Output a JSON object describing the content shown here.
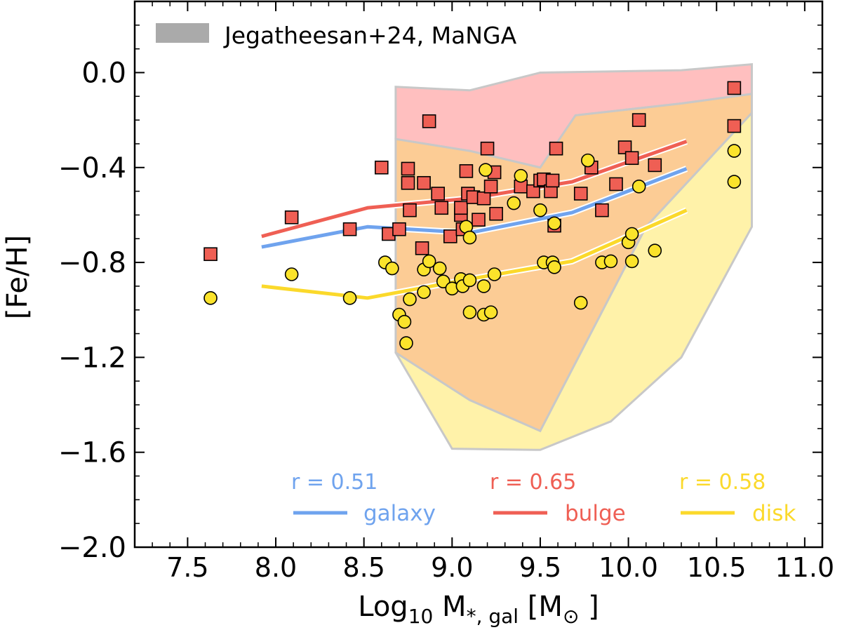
{
  "chart_data": {
    "type": "scatter",
    "xlabel": "Log10 M*,gal [M⊙]",
    "ylabel": "[Fe/H]",
    "xlim": [
      7.2,
      11.1
    ],
    "ylim": [
      -2.0,
      0.3
    ],
    "x_ticks": [
      "7.5",
      "8.0",
      "8.5",
      "9.0",
      "9.5",
      "10.0",
      "10.5",
      "11.0"
    ],
    "y_ticks": [
      "0.0",
      "−0.4",
      "−0.8",
      "−1.2",
      "−1.6",
      "−2.0"
    ],
    "x_tick_values": [
      7.5,
      8.0,
      8.5,
      9.0,
      9.5,
      10.0,
      10.5,
      11.0
    ],
    "y_tick_values": [
      0.0,
      -0.4,
      -0.8,
      -1.2,
      -1.6,
      -2.0
    ],
    "grid": false,
    "legend_top": {
      "label": "Jegatheesan+24, MaNGA",
      "color": "#aaaaaa",
      "placement": "top-left"
    },
    "legend_bottom": [
      {
        "name": "galaxy",
        "r_label": "r = 0.51",
        "color": "#6fa3ee"
      },
      {
        "name": "bulge",
        "r_label": "r = 0.65",
        "color": "#ef5f54"
      },
      {
        "name": "disk",
        "r_label": "r = 0.58",
        "color": "#fbd92b"
      }
    ],
    "bands": [
      {
        "name": "bulge",
        "color": "#ffaaaa",
        "alpha": 0.75,
        "polygon": [
          [
            8.68,
            -0.06
          ],
          [
            9.1,
            -0.075
          ],
          [
            9.5,
            0.0
          ],
          [
            10.3,
            0.01
          ],
          [
            10.7,
            0.035
          ],
          [
            10.7,
            -0.09
          ],
          [
            10.3,
            -0.13
          ],
          [
            9.7,
            -0.18
          ],
          [
            9.5,
            -0.4
          ],
          [
            9.1,
            -0.33
          ],
          [
            8.68,
            -0.28
          ]
        ]
      },
      {
        "name": "galaxy",
        "color": "#fbbf7a",
        "alpha": 0.8,
        "polygon": [
          [
            8.68,
            -0.28
          ],
          [
            9.1,
            -0.33
          ],
          [
            9.5,
            -0.4
          ],
          [
            9.7,
            -0.18
          ],
          [
            10.3,
            -0.13
          ],
          [
            10.7,
            -0.09
          ],
          [
            10.7,
            -0.17
          ],
          [
            10.1,
            -0.65
          ],
          [
            9.5,
            -1.51
          ],
          [
            9.1,
            -1.38
          ],
          [
            8.68,
            -1.18
          ]
        ]
      },
      {
        "name": "disk",
        "color": "#fff09a",
        "alpha": 0.85,
        "polygon": [
          [
            8.68,
            -1.18
          ],
          [
            9.1,
            -1.38
          ],
          [
            9.5,
            -1.51
          ],
          [
            10.1,
            -0.65
          ],
          [
            10.7,
            -0.17
          ],
          [
            10.7,
            -0.65
          ],
          [
            10.3,
            -1.2
          ],
          [
            9.9,
            -1.47
          ],
          [
            9.5,
            -1.59
          ],
          [
            9.0,
            -1.585
          ],
          [
            8.68,
            -1.18
          ]
        ]
      }
    ],
    "series": [
      {
        "name": "bulge",
        "color": "#ef5f54",
        "line": [
          [
            7.92,
            -0.69
          ],
          [
            8.52,
            -0.57
          ],
          [
            9.1,
            -0.53
          ],
          [
            9.68,
            -0.46
          ],
          [
            10.33,
            -0.29
          ]
        ]
      },
      {
        "name": "galaxy",
        "color": "#6fa3ee",
        "line": [
          [
            7.92,
            -0.735
          ],
          [
            8.52,
            -0.65
          ],
          [
            9.1,
            -0.675
          ],
          [
            9.68,
            -0.59
          ],
          [
            10.33,
            -0.405
          ]
        ]
      },
      {
        "name": "disk",
        "color": "#fbd92b",
        "line": [
          [
            7.92,
            -0.9
          ],
          [
            8.52,
            -0.95
          ],
          [
            9.1,
            -0.87
          ],
          [
            9.68,
            -0.795
          ],
          [
            10.33,
            -0.58
          ]
        ]
      }
    ],
    "bulge_points": [
      [
        7.63,
        -0.765
      ],
      [
        8.09,
        -0.61
      ],
      [
        8.42,
        -0.66
      ],
      [
        8.6,
        -0.4
      ],
      [
        8.64,
        -0.68
      ],
      [
        8.7,
        -0.66
      ],
      [
        8.75,
        -0.405
      ],
      [
        8.75,
        -0.465
      ],
      [
        8.76,
        -0.58
      ],
      [
        8.83,
        -0.74
      ],
      [
        8.84,
        -0.465
      ],
      [
        8.87,
        -0.205
      ],
      [
        8.92,
        -0.51
      ],
      [
        8.94,
        -0.57
      ],
      [
        8.99,
        -0.69
      ],
      [
        9.05,
        -0.6
      ],
      [
        9.05,
        -0.57
      ],
      [
        9.06,
        -0.66
      ],
      [
        9.08,
        -0.415
      ],
      [
        9.09,
        -0.51
      ],
      [
        9.12,
        -0.525
      ],
      [
        9.15,
        -0.62
      ],
      [
        9.18,
        -0.53
      ],
      [
        9.2,
        -0.32
      ],
      [
        9.22,
        -0.48
      ],
      [
        9.24,
        -0.42
      ],
      [
        9.25,
        -0.595
      ],
      [
        9.39,
        -0.48
      ],
      [
        9.46,
        -0.5
      ],
      [
        9.5,
        -0.455
      ],
      [
        9.52,
        -0.45
      ],
      [
        9.56,
        -0.5
      ],
      [
        9.57,
        -0.455
      ],
      [
        9.58,
        -0.645
      ],
      [
        9.59,
        -0.32
      ],
      [
        9.73,
        -0.51
      ],
      [
        9.79,
        -0.4
      ],
      [
        9.85,
        -0.58
      ],
      [
        9.93,
        -0.47
      ],
      [
        9.98,
        -0.315
      ],
      [
        10.02,
        -0.36
      ],
      [
        10.06,
        -0.2
      ],
      [
        10.15,
        -0.39
      ],
      [
        10.6,
        -0.065
      ],
      [
        10.6,
        -0.225
      ]
    ],
    "disk_points": [
      [
        7.63,
        -0.95
      ],
      [
        8.09,
        -0.85
      ],
      [
        8.42,
        -0.95
      ],
      [
        8.62,
        -0.8
      ],
      [
        8.66,
        -0.825
      ],
      [
        8.7,
        -1.02
      ],
      [
        8.73,
        -1.05
      ],
      [
        8.74,
        -1.14
      ],
      [
        8.76,
        -0.955
      ],
      [
        8.84,
        -0.925
      ],
      [
        8.84,
        -0.83
      ],
      [
        8.87,
        -0.795
      ],
      [
        8.93,
        -0.825
      ],
      [
        8.95,
        -0.88
      ],
      [
        9.0,
        -0.91
      ],
      [
        9.05,
        -0.87
      ],
      [
        9.06,
        -0.9
      ],
      [
        9.08,
        -0.65
      ],
      [
        9.1,
        -1.01
      ],
      [
        9.1,
        -0.695
      ],
      [
        9.1,
        -0.875
      ],
      [
        9.18,
        -1.02
      ],
      [
        9.18,
        -0.9
      ],
      [
        9.19,
        -0.41
      ],
      [
        9.22,
        -1.01
      ],
      [
        9.24,
        -0.85
      ],
      [
        9.35,
        -0.55
      ],
      [
        9.39,
        -0.435
      ],
      [
        9.5,
        -0.58
      ],
      [
        9.52,
        -0.8
      ],
      [
        9.57,
        -0.8
      ],
      [
        9.58,
        -0.82
      ],
      [
        9.58,
        -0.635
      ],
      [
        9.73,
        -0.97
      ],
      [
        9.77,
        -0.37
      ],
      [
        9.85,
        -0.8
      ],
      [
        9.9,
        -0.795
      ],
      [
        10.0,
        -0.715
      ],
      [
        10.02,
        -0.68
      ],
      [
        10.02,
        -0.795
      ],
      [
        10.06,
        -0.48
      ],
      [
        10.15,
        -0.75
      ],
      [
        10.6,
        -0.33
      ],
      [
        10.6,
        -0.46
      ]
    ]
  }
}
